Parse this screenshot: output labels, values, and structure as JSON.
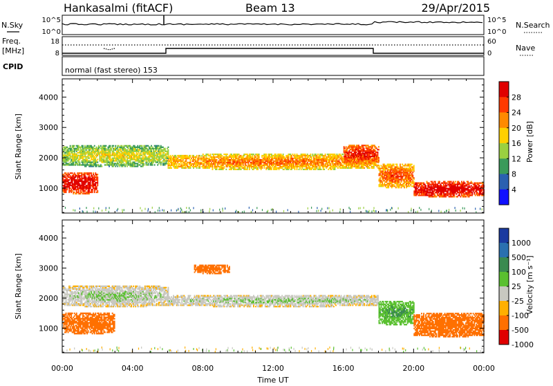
{
  "header": {
    "station": "Hankasalmi (fitACF)",
    "beam": "Beam 13",
    "date": "29/Apr/2015"
  },
  "strips": {
    "nsky_label": "N.Sky",
    "nsearch_label": "N.Search",
    "freq_label_1": "Freq.",
    "freq_label_2": "[MHz]",
    "nave_label": "Nave",
    "cpid_label": "CPID",
    "cpid_text": "normal (fast stereo) 153",
    "noise_ticks": [
      "10^5",
      "10^0"
    ],
    "noise_right_ticks": [
      "10^5",
      "10^0"
    ],
    "freq_ticks": [
      "18",
      "8"
    ],
    "nave_ticks": [
      "60",
      "0"
    ]
  },
  "axes": {
    "ylabel": "Slant Range [km]",
    "xlabel": "Time UT",
    "yticks": [
      "4000",
      "3000",
      "2000",
      "1000"
    ],
    "xticks": [
      "00:00",
      "04:00",
      "08:00",
      "12:00",
      "16:00",
      "20:00",
      "00:00"
    ]
  },
  "colorbars": {
    "power": {
      "label": "Power [dB]",
      "ticks": [
        "28",
        "24",
        "20",
        "16",
        "12",
        "8",
        "4"
      ],
      "colors": [
        "#e00000",
        "#ff3a00",
        "#ff8a00",
        "#ffd000",
        "#9ad040",
        "#3a9a5a",
        "#2a60b0",
        "#1010ff"
      ]
    },
    "velocity": {
      "label": "Velocity [m s⁻¹]",
      "ticks": [
        "1000",
        "500",
        "100",
        "25",
        "-25",
        "-100",
        "-500",
        "-1000"
      ],
      "colors": [
        "#1a3aa0",
        "#2a70b0",
        "#3a8a50",
        "#5ac030",
        "#c8c8c0",
        "#ffb000",
        "#ff7000",
        "#e00000"
      ]
    }
  },
  "chart_data": [
    {
      "type": "heatmap",
      "name": "power",
      "x_range": [
        "00:00",
        "24:00"
      ],
      "y_range_km": [
        180,
        4600
      ],
      "bands": [
        {
          "t": [
            0,
            6
          ],
          "r": [
            1700,
            2400
          ],
          "power_db": 14
        },
        {
          "t": [
            0,
            2
          ],
          "r": [
            800,
            1500
          ],
          "power_db": 28
        },
        {
          "t": [
            6,
            18
          ],
          "r": [
            1600,
            2100
          ],
          "power_db": 20
        },
        {
          "t": [
            16,
            18
          ],
          "r": [
            1800,
            2400
          ],
          "power_db": 26
        },
        {
          "t": [
            18,
            20
          ],
          "r": [
            1000,
            1800
          ],
          "power_db": 22
        },
        {
          "t": [
            20,
            24
          ],
          "r": [
            700,
            1200
          ],
          "power_db": 28
        }
      ]
    },
    {
      "type": "heatmap",
      "name": "velocity",
      "x_range": [
        "00:00",
        "24:00"
      ],
      "y_range_km": [
        180,
        4600
      ],
      "bands": [
        {
          "t": [
            0,
            6
          ],
          "r": [
            1700,
            2400
          ],
          "velocity": 0
        },
        {
          "t": [
            0,
            3
          ],
          "r": [
            800,
            1500
          ],
          "velocity": -300
        },
        {
          "t": [
            6,
            18
          ],
          "r": [
            1700,
            2100
          ],
          "velocity": 0
        },
        {
          "t": [
            7.5,
            9.5
          ],
          "r": [
            2800,
            3100
          ],
          "velocity": -400
        },
        {
          "t": [
            18,
            20
          ],
          "r": [
            1100,
            1900
          ],
          "velocity": 80
        },
        {
          "t": [
            20,
            24
          ],
          "r": [
            700,
            1500
          ],
          "velocity": -400
        }
      ]
    }
  ]
}
